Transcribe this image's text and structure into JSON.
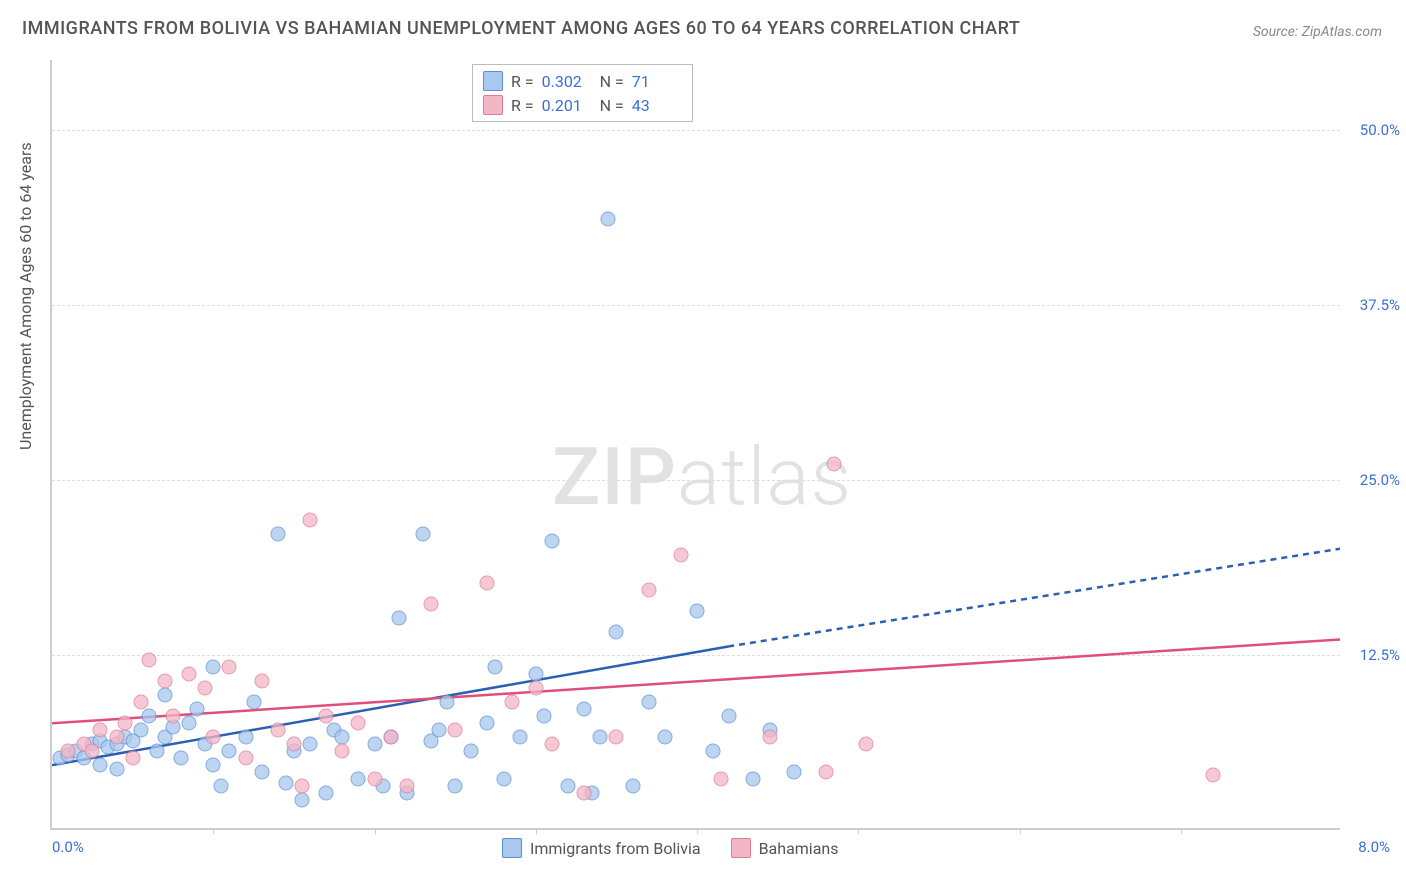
{
  "title": "IMMIGRANTS FROM BOLIVIA VS BAHAMIAN UNEMPLOYMENT AMONG AGES 60 TO 64 YEARS CORRELATION CHART",
  "source": "Source: ZipAtlas.com",
  "ylabel": "Unemployment Among Ages 60 to 64 years",
  "watermark_bold": "ZIP",
  "watermark_light": "atlas",
  "chart": {
    "type": "scatter",
    "xlim": [
      0,
      8
    ],
    "ylim": [
      0,
      55
    ],
    "x_tick_left": "0.0%",
    "x_tick_right": "8.0%",
    "x_minor_ticks": [
      1,
      2,
      3,
      4,
      5,
      6,
      7
    ],
    "y_ticks": [
      {
        "v": 12.5,
        "label": "12.5%"
      },
      {
        "v": 25.0,
        "label": "25.0%"
      },
      {
        "v": 37.5,
        "label": "37.5%"
      },
      {
        "v": 50.0,
        "label": "50.0%"
      }
    ],
    "grid_color": "#dddddd",
    "background_color": "#ffffff",
    "series": [
      {
        "name": "Immigrants from Bolivia",
        "key": "bolivia",
        "fill": "#a8c8ed",
        "stroke": "#5a8fd6",
        "line_color": "#2c5fb3",
        "R_label": "R =",
        "R": "0.302",
        "N_label": "N =",
        "N": "71",
        "trend": {
          "x1": 0,
          "y1": 4.5,
          "x2": 4.2,
          "y2": 13.0,
          "dash_x2": 8.0,
          "dash_y2": 20.0
        },
        "points": [
          [
            0.05,
            5
          ],
          [
            0.1,
            5.2
          ],
          [
            0.15,
            5.5
          ],
          [
            0.2,
            5
          ],
          [
            0.25,
            6
          ],
          [
            0.3,
            6.2
          ],
          [
            0.35,
            5.8
          ],
          [
            0.4,
            6
          ],
          [
            0.45,
            6.5
          ],
          [
            0.5,
            6.2
          ],
          [
            0.55,
            7
          ],
          [
            0.6,
            8
          ],
          [
            0.65,
            5.5
          ],
          [
            0.7,
            6.5
          ],
          [
            0.75,
            7.2
          ],
          [
            0.8,
            5
          ],
          [
            0.85,
            7.5
          ],
          [
            0.9,
            8.5
          ],
          [
            0.95,
            6
          ],
          [
            1.0,
            4.5
          ],
          [
            1.05,
            3
          ],
          [
            1.1,
            5.5
          ],
          [
            1.2,
            6.5
          ],
          [
            1.3,
            4
          ],
          [
            1.4,
            21
          ],
          [
            1.45,
            3.2
          ],
          [
            1.5,
            5.5
          ],
          [
            1.55,
            2
          ],
          [
            1.6,
            6
          ],
          [
            1.7,
            2.5
          ],
          [
            1.75,
            7
          ],
          [
            1.8,
            6.5
          ],
          [
            1.9,
            3.5
          ],
          [
            2.0,
            6
          ],
          [
            2.05,
            3
          ],
          [
            2.1,
            6.5
          ],
          [
            2.15,
            15
          ],
          [
            2.2,
            2.5
          ],
          [
            2.3,
            21
          ],
          [
            2.35,
            6.2
          ],
          [
            2.4,
            7
          ],
          [
            2.45,
            9
          ],
          [
            2.5,
            3
          ],
          [
            2.6,
            5.5
          ],
          [
            2.7,
            7.5
          ],
          [
            2.75,
            11.5
          ],
          [
            2.8,
            3.5
          ],
          [
            2.9,
            6.5
          ],
          [
            3.0,
            11
          ],
          [
            3.05,
            8
          ],
          [
            3.1,
            20.5
          ],
          [
            3.2,
            3
          ],
          [
            3.3,
            8.5
          ],
          [
            3.35,
            2.5
          ],
          [
            3.4,
            6.5
          ],
          [
            3.45,
            43.5
          ],
          [
            3.5,
            14
          ],
          [
            3.6,
            3
          ],
          [
            3.7,
            9
          ],
          [
            3.8,
            6.5
          ],
          [
            4.0,
            15.5
          ],
          [
            4.1,
            5.5
          ],
          [
            4.2,
            8
          ],
          [
            4.35,
            3.5
          ],
          [
            4.45,
            7
          ],
          [
            4.6,
            4
          ],
          [
            0.7,
            9.5
          ],
          [
            1.0,
            11.5
          ],
          [
            1.25,
            9
          ],
          [
            0.3,
            4.5
          ],
          [
            0.4,
            4.2
          ]
        ]
      },
      {
        "name": "Bahamians",
        "key": "bahamians",
        "fill": "#f3b6c5",
        "stroke": "#e07a98",
        "line_color": "#e04f7a",
        "R_label": "R =",
        "R": "0.201",
        "N_label": "N =",
        "N": "43",
        "trend": {
          "x1": 0,
          "y1": 7.5,
          "x2": 8.0,
          "y2": 13.5
        },
        "points": [
          [
            0.1,
            5.5
          ],
          [
            0.2,
            6
          ],
          [
            0.3,
            7
          ],
          [
            0.4,
            6.5
          ],
          [
            0.45,
            7.5
          ],
          [
            0.55,
            9
          ],
          [
            0.6,
            12
          ],
          [
            0.7,
            10.5
          ],
          [
            0.75,
            8
          ],
          [
            0.85,
            11
          ],
          [
            0.95,
            10
          ],
          [
            1.0,
            6.5
          ],
          [
            1.1,
            11.5
          ],
          [
            1.2,
            5
          ],
          [
            1.3,
            10.5
          ],
          [
            1.4,
            7
          ],
          [
            1.5,
            6
          ],
          [
            1.55,
            3
          ],
          [
            1.6,
            22
          ],
          [
            1.7,
            8
          ],
          [
            1.8,
            5.5
          ],
          [
            1.9,
            7.5
          ],
          [
            2.0,
            3.5
          ],
          [
            2.1,
            6.5
          ],
          [
            2.2,
            3
          ],
          [
            2.35,
            16
          ],
          [
            2.5,
            7
          ],
          [
            2.7,
            17.5
          ],
          [
            2.85,
            9
          ],
          [
            3.0,
            10
          ],
          [
            3.1,
            6
          ],
          [
            3.3,
            2.5
          ],
          [
            3.5,
            6.5
          ],
          [
            3.7,
            17
          ],
          [
            3.9,
            19.5
          ],
          [
            4.15,
            3.5
          ],
          [
            4.45,
            6.5
          ],
          [
            4.8,
            4
          ],
          [
            4.85,
            26
          ],
          [
            5.05,
            6
          ],
          [
            7.2,
            3.8
          ],
          [
            0.25,
            5.5
          ],
          [
            0.5,
            5
          ]
        ]
      }
    ]
  }
}
